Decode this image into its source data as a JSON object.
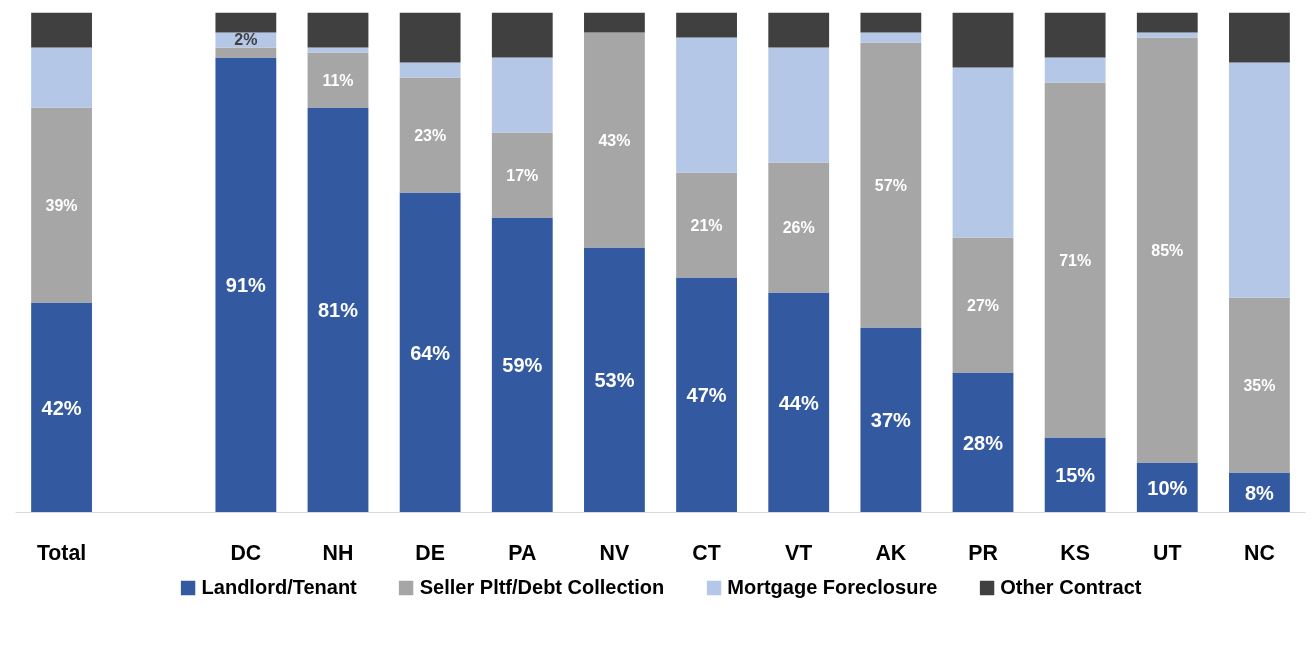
{
  "chart_data": {
    "type": "bar",
    "stacked": true,
    "categories": [
      "Total",
      null,
      "DC",
      "NH",
      "DE",
      "PA",
      "NV",
      "CT",
      "VT",
      "AK",
      "PR",
      "KS",
      "UT",
      "NC"
    ],
    "series": [
      {
        "name": "Landlord/Tenant",
        "color": "#335aa0",
        "values": [
          42,
          null,
          91,
          81,
          64,
          59,
          53,
          47,
          44,
          37,
          28,
          15,
          10,
          8
        ],
        "value_labels": [
          "42%",
          null,
          "91%",
          "81%",
          "64%",
          "59%",
          "53%",
          "47%",
          "44%",
          "37%",
          "28%",
          "15%",
          "10%",
          "8%"
        ]
      },
      {
        "name": "Seller Pltf/Debt Collection",
        "color": "#a6a6a6",
        "values": [
          39,
          null,
          2,
          11,
          23,
          17,
          43,
          21,
          26,
          57,
          27,
          71,
          85,
          35
        ],
        "value_labels": [
          "39%",
          null,
          "2%",
          "11%",
          "23%",
          "17%",
          "43%",
          "21%",
          "26%",
          "57%",
          "27%",
          "71%",
          "85%",
          "35%"
        ]
      },
      {
        "name": "Mortgage Foreclosure",
        "color": "#b4c7e7",
        "values": [
          12,
          null,
          3,
          1,
          3,
          15,
          0,
          27,
          23,
          2,
          34,
          5,
          1,
          47
        ]
      },
      {
        "name": "Other Contract",
        "color": "#404040",
        "values": [
          7,
          null,
          4,
          7,
          10,
          9,
          4,
          5,
          7,
          4,
          11,
          9,
          4,
          10
        ]
      }
    ],
    "ylim": [
      0,
      100
    ],
    "tick_labels": "x",
    "grid": false,
    "legend": "bottom"
  }
}
